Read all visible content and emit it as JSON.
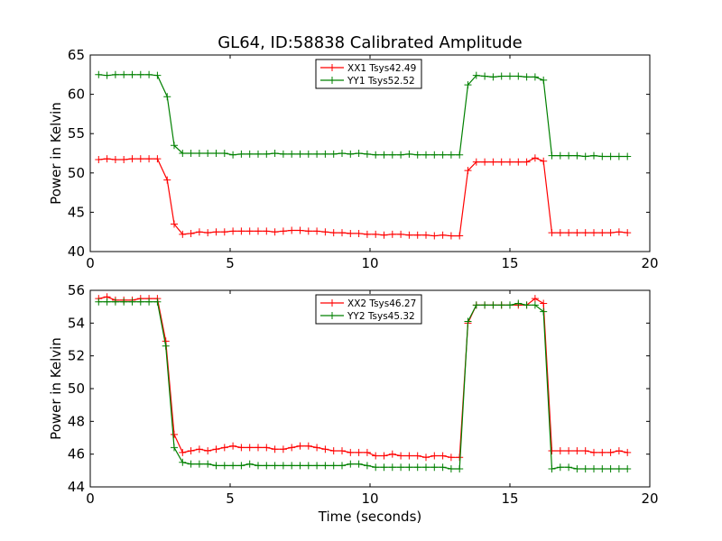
{
  "figure": {
    "title": "GL64, ID:58838 Calibrated Amplitude",
    "xlabel": "Time (seconds)"
  },
  "colors": {
    "red": "#ff0000",
    "green": "#008000",
    "axis": "#000000"
  },
  "chart_data": [
    {
      "type": "line",
      "title": "GL64, ID:58838 Calibrated Amplitude",
      "xlabel": "",
      "ylabel": "Power in Kelvin",
      "xlim": [
        0,
        20
      ],
      "ylim": [
        40,
        65
      ],
      "xticks": [
        0,
        5,
        10,
        15,
        20
      ],
      "yticks": [
        40,
        45,
        50,
        55,
        60,
        65
      ],
      "grid": false,
      "legend_position": "top-center",
      "series": [
        {
          "name": "XX1 Tsys42.49",
          "color": "#ff0000",
          "x": [
            0.3,
            0.6,
            0.9,
            1.2,
            1.5,
            1.8,
            2.1,
            2.4,
            2.75,
            3.0,
            3.3,
            3.6,
            3.9,
            4.2,
            4.5,
            4.8,
            5.1,
            5.4,
            5.7,
            6.0,
            6.3,
            6.6,
            6.9,
            7.2,
            7.5,
            7.8,
            8.1,
            8.4,
            8.7,
            9.0,
            9.3,
            9.6,
            9.9,
            10.2,
            10.5,
            10.8,
            11.1,
            11.4,
            11.7,
            12.0,
            12.3,
            12.6,
            12.9,
            13.2,
            13.5,
            13.8,
            14.1,
            14.4,
            14.7,
            15.0,
            15.3,
            15.6,
            15.9,
            16.2,
            16.5,
            16.8,
            17.1,
            17.4,
            17.7,
            18.0,
            18.3,
            18.6,
            18.9,
            19.2
          ],
          "y": [
            51.7,
            51.8,
            51.7,
            51.7,
            51.8,
            51.8,
            51.8,
            51.8,
            49.1,
            43.5,
            42.2,
            42.3,
            42.5,
            42.4,
            42.5,
            42.5,
            42.6,
            42.6,
            42.6,
            42.6,
            42.6,
            42.5,
            42.6,
            42.7,
            42.7,
            42.6,
            42.6,
            42.5,
            42.4,
            42.4,
            42.3,
            42.3,
            42.2,
            42.2,
            42.1,
            42.2,
            42.2,
            42.1,
            42.1,
            42.1,
            42.0,
            42.1,
            42.0,
            42.0,
            50.3,
            51.4,
            51.4,
            51.4,
            51.4,
            51.4,
            51.4,
            51.4,
            51.9,
            51.5,
            42.4,
            42.4,
            42.4,
            42.4,
            42.4,
            42.4,
            42.4,
            42.4,
            42.5,
            42.4
          ]
        },
        {
          "name": "YY1 Tsys52.52",
          "color": "#008000",
          "x": [
            0.3,
            0.6,
            0.9,
            1.2,
            1.5,
            1.8,
            2.1,
            2.4,
            2.75,
            3.0,
            3.3,
            3.6,
            3.9,
            4.2,
            4.5,
            4.8,
            5.1,
            5.4,
            5.7,
            6.0,
            6.3,
            6.6,
            6.9,
            7.2,
            7.5,
            7.8,
            8.1,
            8.4,
            8.7,
            9.0,
            9.3,
            9.6,
            9.9,
            10.2,
            10.5,
            10.8,
            11.1,
            11.4,
            11.7,
            12.0,
            12.3,
            12.6,
            12.9,
            13.2,
            13.5,
            13.8,
            14.1,
            14.4,
            14.7,
            15.0,
            15.3,
            15.6,
            15.9,
            16.2,
            16.5,
            16.8,
            17.1,
            17.4,
            17.7,
            18.0,
            18.3,
            18.6,
            18.9,
            19.2
          ],
          "y": [
            62.5,
            62.4,
            62.5,
            62.5,
            62.5,
            62.5,
            62.5,
            62.4,
            59.7,
            53.5,
            52.5,
            52.5,
            52.5,
            52.5,
            52.5,
            52.5,
            52.3,
            52.4,
            52.4,
            52.4,
            52.4,
            52.5,
            52.4,
            52.4,
            52.4,
            52.4,
            52.4,
            52.4,
            52.4,
            52.5,
            52.4,
            52.5,
            52.4,
            52.3,
            52.3,
            52.3,
            52.3,
            52.4,
            52.3,
            52.3,
            52.3,
            52.3,
            52.3,
            52.3,
            61.2,
            62.4,
            62.3,
            62.2,
            62.3,
            62.3,
            62.3,
            62.2,
            62.2,
            61.8,
            52.2,
            52.2,
            52.2,
            52.2,
            52.1,
            52.2,
            52.1,
            52.1,
            52.1,
            52.1
          ]
        }
      ]
    },
    {
      "type": "line",
      "title": "",
      "xlabel": "Time (seconds)",
      "ylabel": "Power in Kelvin",
      "xlim": [
        0,
        20
      ],
      "ylim": [
        44,
        56
      ],
      "xticks": [
        0,
        5,
        10,
        15,
        20
      ],
      "yticks": [
        44,
        46,
        48,
        50,
        52,
        54,
        56
      ],
      "grid": false,
      "legend_position": "top-center",
      "series": [
        {
          "name": "XX2 Tsys46.27",
          "color": "#ff0000",
          "x": [
            0.3,
            0.6,
            0.9,
            1.2,
            1.5,
            1.8,
            2.1,
            2.4,
            2.7,
            3.0,
            3.3,
            3.6,
            3.9,
            4.2,
            4.5,
            4.8,
            5.1,
            5.4,
            5.7,
            6.0,
            6.3,
            6.6,
            6.9,
            7.2,
            7.5,
            7.8,
            8.1,
            8.4,
            8.7,
            9.0,
            9.3,
            9.6,
            9.9,
            10.2,
            10.5,
            10.8,
            11.1,
            11.4,
            11.7,
            12.0,
            12.3,
            12.6,
            12.9,
            13.2,
            13.5,
            13.8,
            14.1,
            14.4,
            14.7,
            15.0,
            15.3,
            15.6,
            15.9,
            16.2,
            16.5,
            16.8,
            17.1,
            17.4,
            17.7,
            18.0,
            18.3,
            18.6,
            18.9,
            19.2
          ],
          "y": [
            55.5,
            55.6,
            55.4,
            55.4,
            55.4,
            55.5,
            55.5,
            55.5,
            52.9,
            47.2,
            46.1,
            46.2,
            46.3,
            46.2,
            46.3,
            46.4,
            46.5,
            46.4,
            46.4,
            46.4,
            46.4,
            46.3,
            46.3,
            46.4,
            46.5,
            46.5,
            46.4,
            46.3,
            46.2,
            46.2,
            46.1,
            46.1,
            46.1,
            45.9,
            45.9,
            46.0,
            45.9,
            45.9,
            45.9,
            45.8,
            45.9,
            45.9,
            45.8,
            45.8,
            54.0,
            55.1,
            55.1,
            55.1,
            55.1,
            55.1,
            55.1,
            55.1,
            55.5,
            55.2,
            46.2,
            46.2,
            46.2,
            46.2,
            46.2,
            46.1,
            46.1,
            46.1,
            46.2,
            46.1
          ]
        },
        {
          "name": "YY2 Tsys45.32",
          "color": "#008000",
          "x": [
            0.3,
            0.6,
            0.9,
            1.2,
            1.5,
            1.8,
            2.1,
            2.4,
            2.7,
            3.0,
            3.3,
            3.6,
            3.9,
            4.2,
            4.5,
            4.8,
            5.1,
            5.4,
            5.7,
            6.0,
            6.3,
            6.6,
            6.9,
            7.2,
            7.5,
            7.8,
            8.1,
            8.4,
            8.7,
            9.0,
            9.3,
            9.6,
            9.9,
            10.2,
            10.5,
            10.8,
            11.1,
            11.4,
            11.7,
            12.0,
            12.3,
            12.6,
            12.9,
            13.2,
            13.5,
            13.8,
            14.1,
            14.4,
            14.7,
            15.0,
            15.3,
            15.6,
            15.9,
            16.2,
            16.5,
            16.8,
            17.1,
            17.4,
            17.7,
            18.0,
            18.3,
            18.6,
            18.9,
            19.2
          ],
          "y": [
            55.3,
            55.3,
            55.3,
            55.3,
            55.3,
            55.3,
            55.3,
            55.3,
            52.6,
            46.4,
            45.5,
            45.4,
            45.4,
            45.4,
            45.3,
            45.3,
            45.3,
            45.3,
            45.4,
            45.3,
            45.3,
            45.3,
            45.3,
            45.3,
            45.3,
            45.3,
            45.3,
            45.3,
            45.3,
            45.3,
            45.4,
            45.4,
            45.3,
            45.2,
            45.2,
            45.2,
            45.2,
            45.2,
            45.2,
            45.2,
            45.2,
            45.2,
            45.1,
            45.1,
            54.1,
            55.1,
            55.1,
            55.1,
            55.1,
            55.1,
            55.2,
            55.1,
            55.1,
            54.7,
            45.1,
            45.2,
            45.2,
            45.1,
            45.1,
            45.1,
            45.1,
            45.1,
            45.1,
            45.1
          ]
        }
      ]
    }
  ]
}
